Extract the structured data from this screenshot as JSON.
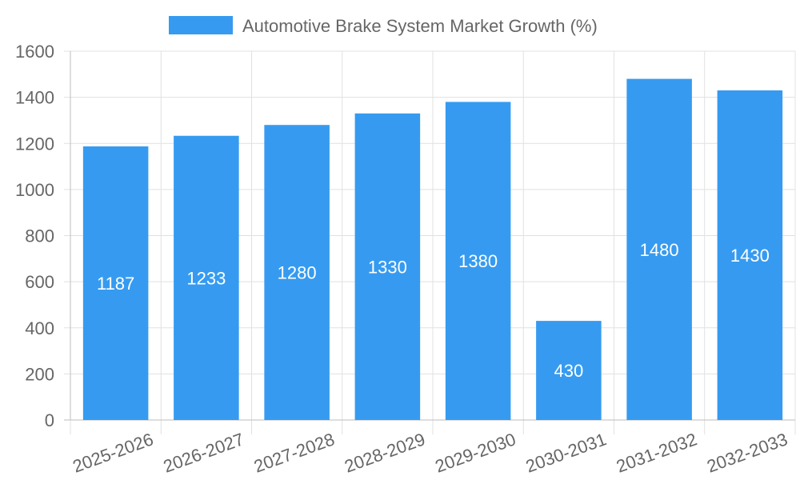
{
  "chart_data": {
    "type": "bar",
    "categories": [
      "2025-2026",
      "2026-2027",
      "2027-2028",
      "2028-2029",
      "2029-2030",
      "2030-2031",
      "2031-2032",
      "2032-2033"
    ],
    "series": [
      {
        "name": "Automotive Brake System Market Growth (%)",
        "values": [
          1187,
          1233,
          1280,
          1330,
          1380,
          430,
          1480,
          1430
        ],
        "color": "#369bf0"
      }
    ],
    "ylim": [
      0,
      1600
    ],
    "yticks": [
      0,
      200,
      400,
      600,
      800,
      1000,
      1200,
      1400,
      1600
    ],
    "title": "",
    "xlabel": "",
    "ylabel": "",
    "legend_position": "top",
    "grid": true,
    "data_labels": true
  }
}
